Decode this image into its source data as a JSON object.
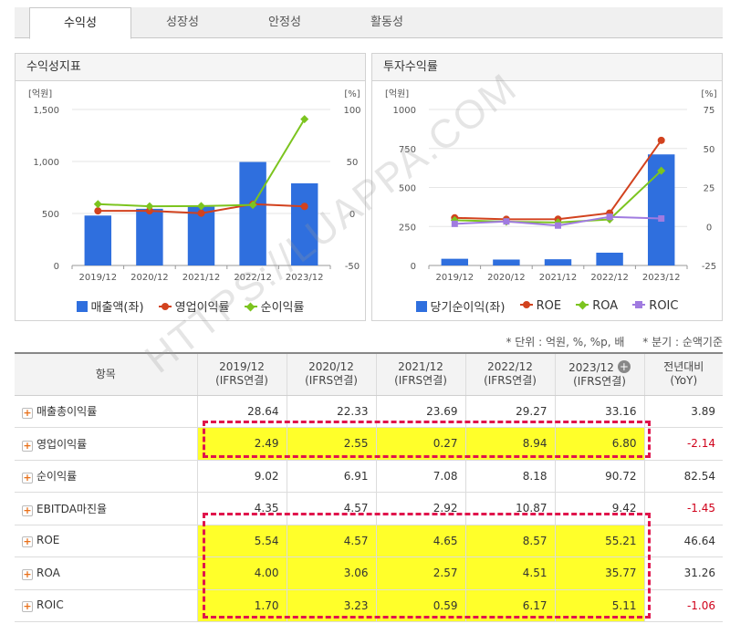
{
  "tabs": [
    {
      "label": "수익성",
      "active": true
    },
    {
      "label": "성장성",
      "active": false
    },
    {
      "label": "안정성",
      "active": false
    },
    {
      "label": "활동성",
      "active": false
    }
  ],
  "left_panel": {
    "title": "수익성지표"
  },
  "right_panel": {
    "title": "투자수익률"
  },
  "chart_data": [
    {
      "type": "bar",
      "title": "수익성지표",
      "categories": [
        "2019/12",
        "2020/12",
        "2021/12",
        "2022/12",
        "2023/12"
      ],
      "y_left_unit": "[억원]",
      "y_right_unit": "[%]",
      "y_left_ticks": [
        "1,500",
        "1,000",
        "500",
        "0"
      ],
      "y_right_ticks": [
        "100",
        "50",
        "0",
        "-50"
      ],
      "ylim_left": [
        0,
        1500
      ],
      "ylim_right": [
        -50,
        100
      ],
      "series": [
        {
          "name": "매출액(좌)",
          "kind": "bar",
          "axis": "left",
          "color": "#2f6fde",
          "values": [
            480,
            545,
            565,
            995,
            790
          ]
        },
        {
          "name": "영업이익률",
          "kind": "line",
          "axis": "right",
          "marker": "circle",
          "color": "#d2421e",
          "values": [
            2.49,
            2.55,
            0.27,
            8.94,
            6.8
          ]
        },
        {
          "name": "순이익률",
          "kind": "line",
          "axis": "right",
          "marker": "diamond",
          "color": "#7cc41f",
          "values": [
            9.02,
            6.91,
            7.08,
            8.18,
            90.72
          ]
        }
      ]
    },
    {
      "type": "bar",
      "title": "투자수익률",
      "categories": [
        "2019/12",
        "2020/12",
        "2021/12",
        "2022/12",
        "2023/12"
      ],
      "y_left_unit": "[억원]",
      "y_right_unit": "[%]",
      "y_left_ticks": [
        "1000",
        "750",
        "500",
        "250",
        "0"
      ],
      "y_right_ticks": [
        "75",
        "50",
        "25",
        "0",
        "-25"
      ],
      "ylim_left": [
        0,
        1000
      ],
      "ylim_right": [
        -25,
        75
      ],
      "series": [
        {
          "name": "당기순이익(좌)",
          "kind": "bar",
          "axis": "left",
          "color": "#2f6fde",
          "values": [
            43,
            38,
            40,
            82,
            712
          ]
        },
        {
          "name": "ROE",
          "kind": "line",
          "axis": "right",
          "marker": "circle",
          "color": "#d2421e",
          "values": [
            5.54,
            4.57,
            4.65,
            8.57,
            55.21
          ]
        },
        {
          "name": "ROA",
          "kind": "line",
          "axis": "right",
          "marker": "diamond",
          "color": "#7cc41f",
          "values": [
            4.0,
            3.06,
            2.57,
            4.51,
            35.77
          ]
        },
        {
          "name": "ROIC",
          "kind": "line",
          "axis": "right",
          "marker": "square",
          "color": "#a07be0",
          "values": [
            1.7,
            3.23,
            0.59,
            6.17,
            5.11
          ]
        }
      ]
    }
  ],
  "notes": {
    "unit": "* 단위 : 억원, %, %p, 배",
    "quarter": "* 분기 : 순액기준"
  },
  "table": {
    "header": {
      "item": "항목",
      "cols": [
        {
          "year": "2019/12",
          "basis": "(IFRS연결)"
        },
        {
          "year": "2020/12",
          "basis": "(IFRS연결)"
        },
        {
          "year": "2021/12",
          "basis": "(IFRS연결)"
        },
        {
          "year": "2022/12",
          "basis": "(IFRS연결)"
        },
        {
          "year": "2023/12",
          "basis": "(IFRS연결)"
        }
      ],
      "yoy": {
        "line1": "전년대비",
        "line2": "(YoY)"
      }
    },
    "expand_icon": "+",
    "add_col_icon": "+",
    "rows": [
      {
        "label": "매출총이익률",
        "values": [
          "28.64",
          "22.33",
          "23.69",
          "29.27",
          "33.16"
        ],
        "yoy": "3.89",
        "yoy_neg": false,
        "hl": false
      },
      {
        "label": "영업이익률",
        "values": [
          "2.49",
          "2.55",
          "0.27",
          "8.94",
          "6.80"
        ],
        "yoy": "-2.14",
        "yoy_neg": true,
        "hl": true
      },
      {
        "label": "순이익률",
        "values": [
          "9.02",
          "6.91",
          "7.08",
          "8.18",
          "90.72"
        ],
        "yoy": "82.54",
        "yoy_neg": false,
        "hl": false
      },
      {
        "label": "EBITDA마진율",
        "values": [
          "4.35",
          "4.57",
          "2.92",
          "10.87",
          "9.42"
        ],
        "yoy": "-1.45",
        "yoy_neg": true,
        "hl": false
      },
      {
        "label": "ROE",
        "values": [
          "5.54",
          "4.57",
          "4.65",
          "8.57",
          "55.21"
        ],
        "yoy": "46.64",
        "yoy_neg": false,
        "hl": true
      },
      {
        "label": "ROA",
        "values": [
          "4.00",
          "3.06",
          "2.57",
          "4.51",
          "35.77"
        ],
        "yoy": "31.26",
        "yoy_neg": false,
        "hl": true
      },
      {
        "label": "ROIC",
        "values": [
          "1.70",
          "3.23",
          "0.59",
          "6.17",
          "5.11"
        ],
        "yoy": "-1.06",
        "yoy_neg": true,
        "hl": true
      }
    ]
  },
  "watermark": "HTTPS://LUAPPA.COM"
}
